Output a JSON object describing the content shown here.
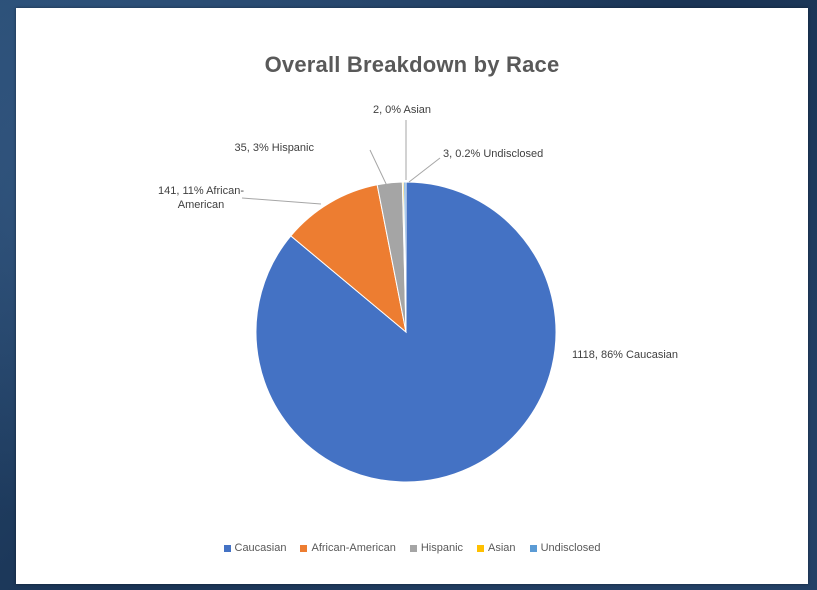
{
  "chart_data": {
    "type": "pie",
    "title": "Overall Breakdown by Race",
    "slices": [
      {
        "name": "Caucasian",
        "value": 1118,
        "percent_label": "86%",
        "color": "#4472c4",
        "data_label": "1118, 86% Caucasian"
      },
      {
        "name": "African-American",
        "value": 141,
        "percent_label": "11%",
        "color": "#ed7d31",
        "data_label": "141, 11% African-\nAmerican"
      },
      {
        "name": "Hispanic",
        "value": 35,
        "percent_label": "3%",
        "color": "#a5a5a5",
        "data_label": "35, 3% Hispanic"
      },
      {
        "name": "Asian",
        "value": 2,
        "percent_label": "0%",
        "color": "#ffc000",
        "data_label": "2, 0% Asian"
      },
      {
        "name": "Undisclosed",
        "value": 3,
        "percent_label": "0.2%",
        "color": "#5b9bd5",
        "data_label": "3, 0.2% Undisclosed"
      }
    ],
    "legend": [
      "Caucasian",
      "African-American",
      "Hispanic",
      "Asian",
      "Undisclosed"
    ],
    "legend_position": "bottom"
  }
}
